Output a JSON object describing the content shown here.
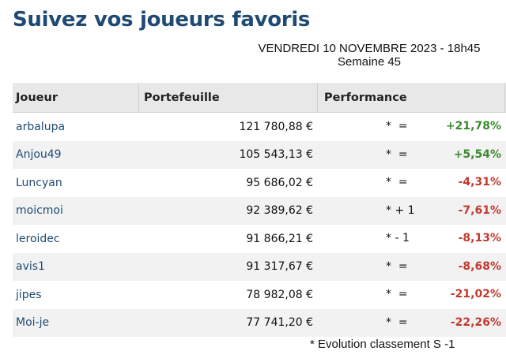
{
  "page": {
    "title": "Suivez vos joueurs favoris",
    "date": "VENDREDI 10 NOVEMBRE 2023 - 18h45",
    "week": "Semaine 45"
  },
  "table": {
    "headers": {
      "player": "Joueur",
      "wallet": "Portefeuille",
      "performance": "Performance"
    },
    "rows": [
      {
        "player": "arbalupa",
        "wallet": "121 780,88 €",
        "rank": "*  =",
        "pct": "+21,78%",
        "trend": "pos"
      },
      {
        "player": "Anjou49",
        "wallet": "105 543,13 €",
        "rank": "*  =",
        "pct": "+5,54%",
        "trend": "pos"
      },
      {
        "player": "Luncyan",
        "wallet": "95 686,02 €",
        "rank": "*  =",
        "pct": "-4,31%",
        "trend": "neg"
      },
      {
        "player": "moicmoi",
        "wallet": "92 389,62 €",
        "rank": "* + 1",
        "pct": "-7,61%",
        "trend": "neg"
      },
      {
        "player": "leroidec",
        "wallet": "91 866,21 €",
        "rank": "* - 1",
        "pct": "-8,13%",
        "trend": "neg"
      },
      {
        "player": "avis1",
        "wallet": "91 317,67 €",
        "rank": "*  =",
        "pct": "-8,68%",
        "trend": "neg"
      },
      {
        "player": "jipes",
        "wallet": "78 982,08 €",
        "rank": "*  =",
        "pct": "-21,02%",
        "trend": "neg"
      },
      {
        "player": "Moi-je",
        "wallet": "77 741,20 €",
        "rank": "*  =",
        "pct": "-22,26%",
        "trend": "neg"
      }
    ]
  },
  "footnote": "* Evolution classement S -1",
  "colors": {
    "title": "#1f4a73",
    "link": "#1f4a73",
    "positive": "#3a8a2e",
    "negative": "#c23a2f",
    "header_bg": "#e8e8e8",
    "stripe_bg": "#f2f2f2"
  }
}
